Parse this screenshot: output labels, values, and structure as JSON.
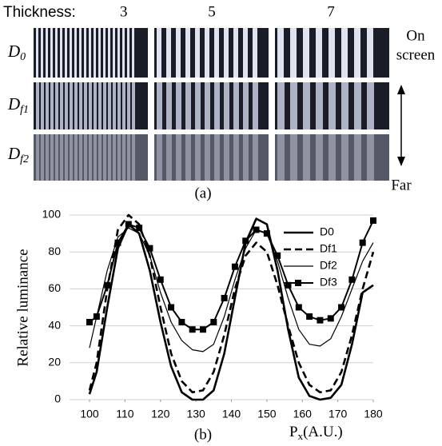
{
  "figure_a": {
    "thickness_label": "Thickness:",
    "thicknesses": [
      3,
      5,
      7
    ],
    "rows": [
      {
        "main": "D",
        "sub": "0"
      },
      {
        "main": "D",
        "sub": "f1"
      },
      {
        "main": "D",
        "sub": "f2"
      }
    ],
    "near_label_1": "On",
    "near_label_2": "screen",
    "far_label": "Far",
    "caption": "(a)"
  },
  "chart_data": {
    "type": "line",
    "caption": "(b)",
    "y_label": "Relative luminance",
    "x_label": {
      "main": "P",
      "sub": "x",
      "suffix": "(A.U.)"
    },
    "x": [
      100,
      102,
      105,
      108,
      111,
      114,
      117,
      120,
      123,
      126,
      129,
      132,
      135,
      138,
      141,
      144,
      147,
      150,
      153,
      156,
      159,
      162,
      165,
      168,
      171,
      174,
      177,
      180
    ],
    "series": [
      {
        "name": "D0",
        "color": "#000000",
        "line_width": 2.6,
        "dash": "none",
        "marker": "none",
        "values": [
          3,
          15,
          50,
          82,
          95,
          90,
          70,
          42,
          18,
          4,
          0,
          0,
          5,
          25,
          55,
          85,
          98,
          95,
          70,
          38,
          12,
          2,
          0,
          1,
          8,
          30,
          58,
          62
        ]
      },
      {
        "name": "Df1",
        "color": "#000000",
        "line_width": 2.6,
        "dash": "9 5",
        "marker": "none",
        "values": [
          5,
          20,
          60,
          92,
          100,
          95,
          78,
          50,
          25,
          10,
          4,
          5,
          15,
          35,
          60,
          78,
          85,
          80,
          62,
          40,
          20,
          8,
          4,
          5,
          15,
          35,
          60,
          80
        ]
      },
      {
        "name": "Df2",
        "color": "#000000",
        "line_width": 1.2,
        "dash": "none",
        "marker": "none",
        "values": [
          28,
          45,
          70,
          88,
          93,
          90,
          78,
          58,
          42,
          32,
          27,
          26,
          30,
          45,
          65,
          82,
          92,
          90,
          75,
          55,
          38,
          30,
          29,
          33,
          45,
          60,
          75,
          85
        ]
      },
      {
        "name": "Df3",
        "color": "#000000",
        "line_width": 2,
        "dash": "none",
        "marker": "square",
        "values": [
          42,
          45,
          62,
          85,
          95,
          93,
          82,
          65,
          50,
          42,
          38,
          38,
          42,
          55,
          72,
          86,
          92,
          90,
          78,
          62,
          50,
          45,
          43,
          44,
          50,
          65,
          85,
          97
        ]
      }
    ],
    "xlim": [
      100,
      180
    ],
    "xticks": [
      100,
      110,
      120,
      130,
      140,
      150,
      160,
      170,
      180
    ],
    "ylim": [
      0,
      100
    ],
    "yticks": [
      0,
      20,
      40,
      60,
      80,
      100
    ],
    "grid": true,
    "legend": "upper right"
  }
}
